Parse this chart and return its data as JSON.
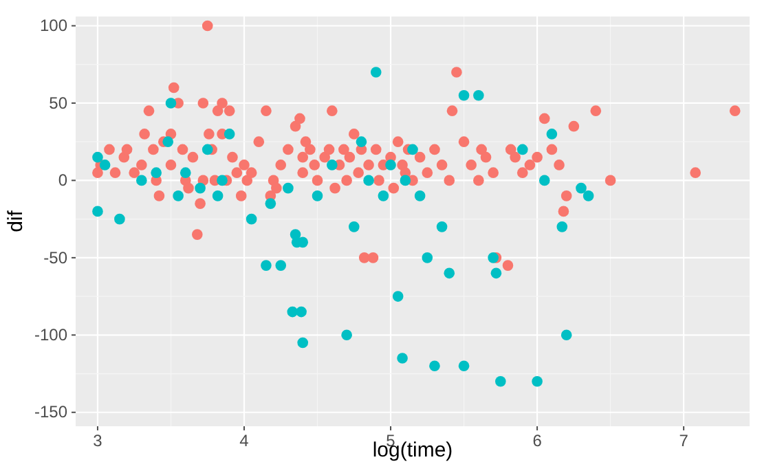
{
  "chart_data": {
    "type": "scatter",
    "xlabel": "log(time)",
    "ylabel": "dif",
    "xlim": [
      2.85,
      7.45
    ],
    "ylim": [
      -159,
      106
    ],
    "xticks": [
      3,
      4,
      5,
      6,
      7
    ],
    "yticks": [
      -150,
      -100,
      -50,
      0,
      50,
      100
    ],
    "grid": true,
    "marker": "circle",
    "series": [
      {
        "color": "#f8766d",
        "x": [
          3.0,
          3.02,
          3.08,
          3.12,
          3.18,
          3.2,
          3.25,
          3.3,
          3.32,
          3.35,
          3.38,
          3.4,
          3.42,
          3.45,
          3.5,
          3.5,
          3.52,
          3.55,
          3.58,
          3.6,
          3.62,
          3.65,
          3.68,
          3.7,
          3.72,
          3.72,
          3.75,
          3.76,
          3.78,
          3.8,
          3.82,
          3.85,
          3.85,
          3.88,
          3.9,
          3.92,
          3.95,
          3.98,
          4.0,
          4.02,
          4.05,
          4.1,
          4.15,
          4.18,
          4.2,
          4.22,
          4.25,
          4.3,
          4.35,
          4.38,
          4.4,
          4.4,
          4.42,
          4.45,
          4.48,
          4.5,
          4.55,
          4.58,
          4.6,
          4.62,
          4.65,
          4.68,
          4.7,
          4.72,
          4.75,
          4.78,
          4.8,
          4.82,
          4.85,
          4.88,
          4.9,
          4.92,
          4.95,
          5.0,
          5.02,
          5.05,
          5.08,
          5.1,
          5.12,
          5.15,
          5.2,
          5.25,
          5.3,
          5.35,
          5.4,
          5.42,
          5.45,
          5.5,
          5.55,
          5.6,
          5.62,
          5.65,
          5.7,
          5.72,
          5.8,
          5.82,
          5.85,
          5.9,
          5.95,
          6.0,
          6.05,
          6.1,
          6.15,
          6.18,
          6.2,
          6.25,
          6.4,
          6.5,
          7.08,
          7.35
        ],
        "values": [
          5,
          10,
          20,
          5,
          15,
          20,
          5,
          10,
          30,
          45,
          20,
          0,
          -10,
          25,
          30,
          10,
          60,
          50,
          20,
          0,
          -5,
          15,
          -35,
          -15,
          0,
          50,
          100,
          30,
          20,
          0,
          45,
          50,
          30,
          0,
          45,
          15,
          5,
          -10,
          10,
          0,
          5,
          25,
          45,
          -10,
          0,
          -5,
          10,
          20,
          35,
          40,
          15,
          5,
          25,
          20,
          10,
          0,
          15,
          20,
          45,
          -5,
          10,
          20,
          0,
          15,
          30,
          5,
          20,
          -50,
          10,
          -50,
          20,
          0,
          10,
          15,
          -5,
          25,
          10,
          5,
          20,
          0,
          15,
          5,
          20,
          10,
          0,
          45,
          70,
          25,
          10,
          0,
          20,
          15,
          5,
          -50,
          -55,
          20,
          15,
          5,
          10,
          15,
          40,
          20,
          10,
          -20,
          -10,
          35,
          45,
          0,
          5,
          45
        ]
      },
      {
        "color": "#00bfc4",
        "x": [
          3.0,
          3.0,
          3.05,
          3.15,
          3.3,
          3.4,
          3.48,
          3.5,
          3.55,
          3.6,
          3.7,
          3.75,
          3.82,
          3.85,
          3.9,
          4.05,
          4.15,
          4.18,
          4.25,
          4.3,
          4.35,
          4.36,
          4.4,
          4.33,
          4.39,
          4.4,
          4.5,
          4.6,
          4.7,
          4.75,
          4.8,
          4.85,
          4.9,
          4.95,
          5.0,
          5.05,
          5.08,
          5.1,
          5.15,
          5.2,
          5.25,
          5.3,
          5.35,
          5.4,
          5.5,
          5.5,
          5.6,
          5.7,
          5.72,
          5.75,
          5.9,
          6.0,
          6.05,
          6.1,
          6.2,
          6.17,
          6.3,
          6.35
        ],
        "values": [
          15,
          -20,
          10,
          -25,
          0,
          5,
          25,
          50,
          -10,
          5,
          -5,
          20,
          -10,
          0,
          30,
          -25,
          -55,
          -15,
          -55,
          -5,
          -35,
          -40,
          -40,
          -85,
          -85,
          -105,
          -10,
          10,
          -100,
          -30,
          25,
          0,
          70,
          -10,
          10,
          -75,
          -115,
          0,
          20,
          -10,
          -50,
          -120,
          -30,
          -60,
          -120,
          55,
          55,
          -50,
          -60,
          -130,
          20,
          -130,
          0,
          30,
          -100,
          -30,
          -5,
          -10
        ]
      }
    ]
  }
}
